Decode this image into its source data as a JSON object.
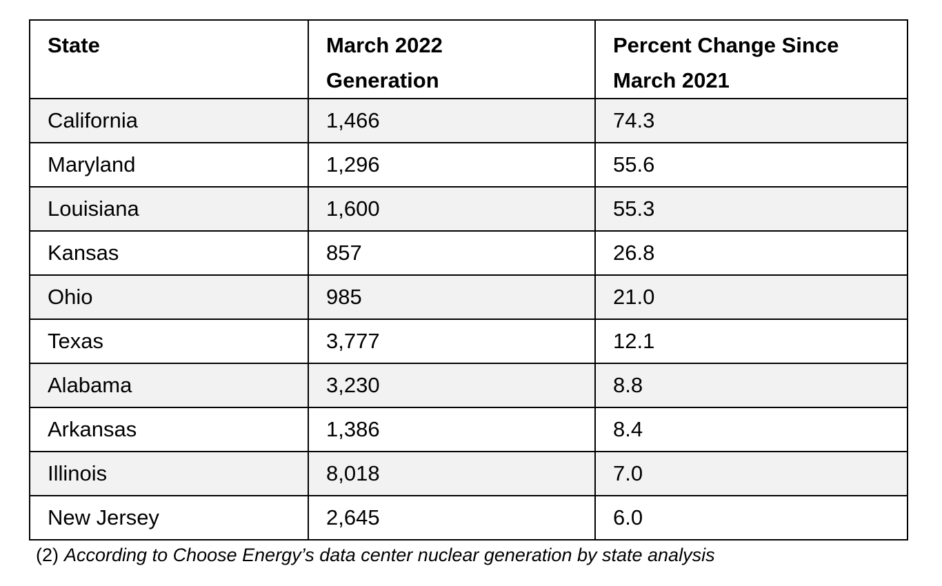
{
  "table": {
    "headers": [
      "State",
      "March 2022\nGeneration",
      "Percent Change Since\nMarch 2021"
    ],
    "header_lines": [
      [
        "State"
      ],
      [
        "March 2022",
        "Generation"
      ],
      [
        "Percent Change Since",
        "March 2021"
      ]
    ],
    "rows": [
      [
        "California",
        "1,466",
        "74.3"
      ],
      [
        "Maryland",
        "1,296",
        "55.6"
      ],
      [
        "Louisiana",
        "1,600",
        "55.3"
      ],
      [
        "Kansas",
        "857",
        "26.8"
      ],
      [
        "Ohio",
        "985",
        "21.0"
      ],
      [
        "Texas",
        "3,777",
        "12.1"
      ],
      [
        "Alabama",
        "3,230",
        "8.8"
      ],
      [
        "Arkansas",
        "1,386",
        "8.4"
      ],
      [
        "Illinois",
        "8,018",
        "7.0"
      ],
      [
        "New Jersey",
        "2,645",
        "6.0"
      ]
    ],
    "shaded_row_color": "#f2f2f2"
  },
  "footnote": {
    "number": "(2)",
    "text": "According to Choose Energy’s data center nuclear generation by state analysis"
  }
}
